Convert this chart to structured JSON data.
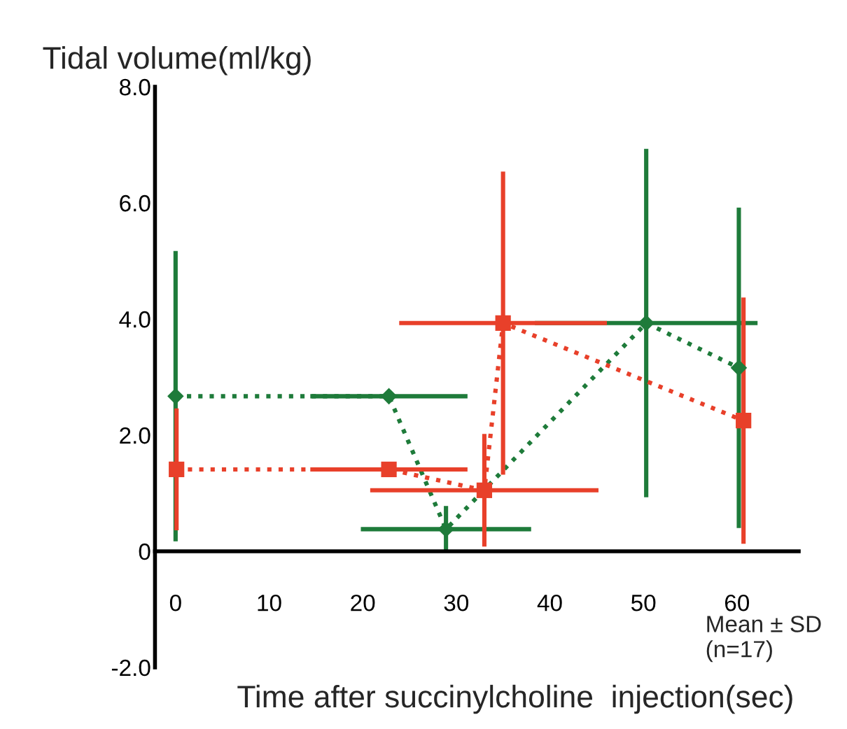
{
  "chart_data": {
    "type": "line",
    "ylabel": "Tidal volume(ml/kg)",
    "xlabel": "Time after succinylcholine  injection(sec)",
    "annotations": [
      "Mean ± SD\n(n=17)"
    ],
    "xlim": [
      -2.2,
      66.6
    ],
    "xticks": [
      0,
      10,
      20,
      30,
      40,
      50,
      60
    ],
    "ylim": [
      -2,
      8
    ],
    "yticks": [
      {
        "value": -2,
        "label": "-2.0"
      },
      0,
      {
        "value": 2,
        "label": "2.0"
      },
      {
        "value": 4,
        "label": "4.0"
      },
      {
        "value": 6,
        "label": "6.0"
      },
      {
        "value": 8,
        "label": "8.0"
      }
    ],
    "grid": false,
    "legend": false,
    "line_style": "dotted",
    "series": [
      {
        "color": "#1e7b3a",
        "marker": "diamond",
        "x": [
          0,
          22.8,
          28.9,
          50.3,
          60.2
        ],
        "values": [
          2.67,
          2.67,
          0.38,
          3.93,
          3.16
        ],
        "errors": [
          2.5,
          null,
          0.4,
          3.0,
          2.76
        ],
        "xerrors": [
          null,
          8.4,
          9.1,
          11.9,
          null
        ]
      },
      {
        "color": "#e8402a",
        "marker": "square",
        "x": [
          0.1,
          22.8,
          33.0,
          35.0,
          60.7
        ],
        "values": [
          1.41,
          1.41,
          1.05,
          3.93,
          2.25
        ],
        "errors": [
          1.05,
          null,
          0.97,
          2.61,
          2.12
        ],
        "xerrors": [
          null,
          8.4,
          12.2,
          11.1,
          null
        ]
      }
    ]
  }
}
